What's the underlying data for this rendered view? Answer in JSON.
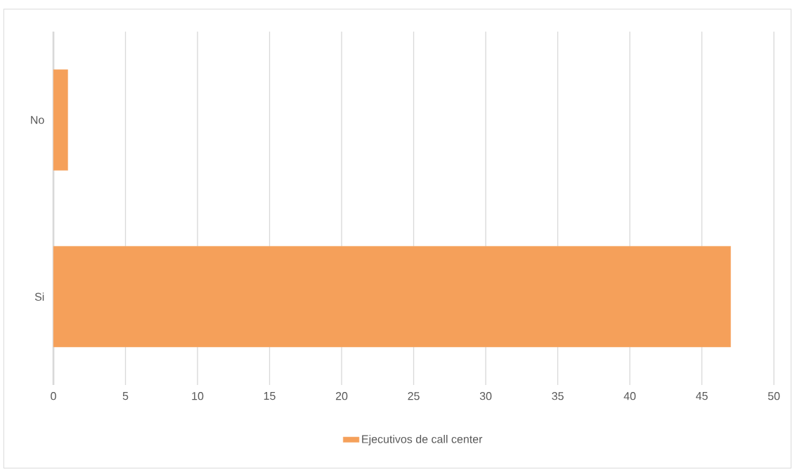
{
  "chart_data": {
    "type": "bar",
    "orientation": "horizontal",
    "categories": [
      "No",
      "Si"
    ],
    "series": [
      {
        "name": "Ejecutivos de call center",
        "color": "#f5a05a",
        "values": [
          1,
          47
        ]
      }
    ],
    "xlim": [
      0,
      50
    ],
    "xticks": [
      0,
      5,
      10,
      15,
      20,
      25,
      30,
      35,
      40,
      45,
      50
    ],
    "grid": "x",
    "legend": "bottom"
  }
}
